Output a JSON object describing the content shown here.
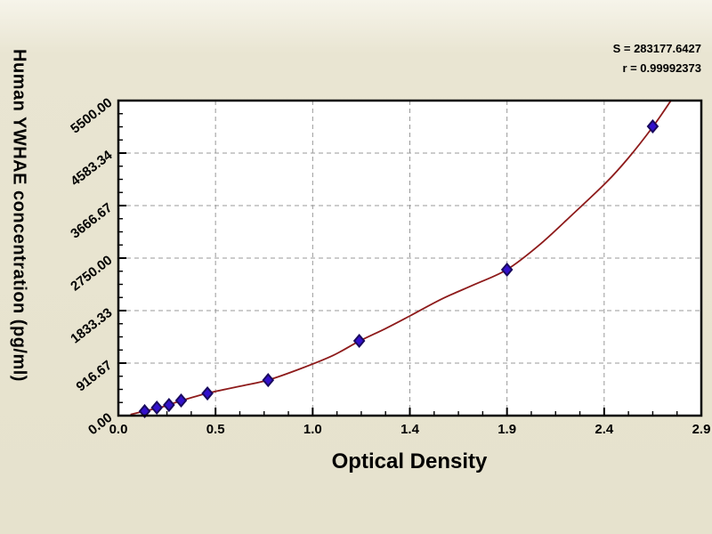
{
  "colors": {
    "background": "#e6e2cd",
    "plot_background": "#ffffff",
    "frame": "#000000",
    "grid": "#999999",
    "curve": "#8e1b1b",
    "marker_fill": "#3311cc",
    "marker_stroke": "#190a5e",
    "text": "#000000"
  },
  "chart_data": {
    "type": "scatter",
    "title": "",
    "xlabel": "Optical Density",
    "ylabel": "Human YWHAE concentration (pg/ml)",
    "annotations": {
      "s_line": "S = 283177.6427",
      "r_line": "r = 0.99992373"
    },
    "legend_position": "none",
    "grid": "dashed at major ticks",
    "xlim": [
      0,
      2.88
    ],
    "ylim": [
      0,
      5500
    ],
    "x_major_ticks": [
      0,
      0.48,
      0.96,
      1.44,
      1.92,
      2.4,
      2.88
    ],
    "x_tick_labels": [
      "0.0",
      "0.5",
      "1.0",
      "1.4",
      "1.9",
      "2.4",
      "2.9"
    ],
    "x_minor_tick_step": 0.12,
    "y_major_ticks": [
      0,
      916.67,
      1833.33,
      2750,
      3666.67,
      4583.34,
      5500
    ],
    "y_tick_labels": [
      "0.00",
      "916.67",
      "1833.33",
      "2750.00",
      "3666.67",
      "4583.34",
      "5500.00"
    ],
    "y_minor_tick_step": 229.17,
    "series": [
      {
        "name": "standard-points",
        "type": "scatter",
        "marker": "diamond",
        "points": [
          [
            0.13,
            78
          ],
          [
            0.19,
            140
          ],
          [
            0.25,
            186
          ],
          [
            0.31,
            264
          ],
          [
            0.44,
            388
          ],
          [
            0.74,
            620
          ],
          [
            1.19,
            1305
          ],
          [
            1.92,
            2548
          ],
          [
            2.64,
            5050
          ]
        ]
      },
      {
        "name": "fitted-curve",
        "type": "line",
        "points": [
          [
            0.06,
            20
          ],
          [
            0.13,
            80
          ],
          [
            0.22,
            155
          ],
          [
            0.31,
            260
          ],
          [
            0.44,
            390
          ],
          [
            0.6,
            512
          ],
          [
            0.74,
            622
          ],
          [
            0.9,
            820
          ],
          [
            1.06,
            1050
          ],
          [
            1.19,
            1300
          ],
          [
            1.32,
            1520
          ],
          [
            1.44,
            1740
          ],
          [
            1.6,
            2040
          ],
          [
            1.76,
            2290
          ],
          [
            1.92,
            2550
          ],
          [
            2.08,
            2980
          ],
          [
            2.24,
            3500
          ],
          [
            2.41,
            4070
          ],
          [
            2.52,
            4500
          ],
          [
            2.64,
            5040
          ],
          [
            2.73,
            5500
          ]
        ]
      }
    ]
  }
}
